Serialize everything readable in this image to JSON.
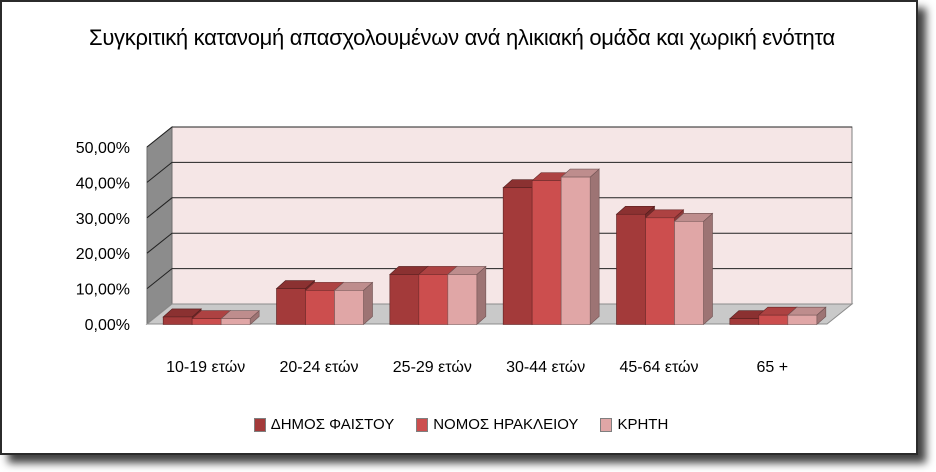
{
  "chart_data": {
    "type": "bar",
    "title": "Συγκριτική κατανομή απασχολουμένων ανά ηλικιακή ομάδα και χωρική ενότητα",
    "categories": [
      "10-19 ετών",
      "20-24 ετών",
      "25-29 ετών",
      "30-44 ετών",
      "45-64 ετών",
      "65 +"
    ],
    "series": [
      {
        "name": "ΔΗΜΟΣ ΦΑΙΣΤΟΥ",
        "values": [
          2.0,
          10.0,
          14.0,
          38.5,
          31.0,
          1.5
        ],
        "color": "#a33a3a"
      },
      {
        "name": "ΝΟΜΟΣ ΗΡΑΚΛΕΙΟΥ",
        "values": [
          1.5,
          9.5,
          14.0,
          40.5,
          30.0,
          2.5
        ],
        "color": "#cc4e4e"
      },
      {
        "name": "ΚΡΗΤΗ",
        "values": [
          1.5,
          9.5,
          14.0,
          41.5,
          29.0,
          2.5
        ],
        "color": "#e0a6a6"
      }
    ],
    "ylim": [
      0,
      50
    ],
    "yticks": [
      "0,00%",
      "10,00%",
      "20,00%",
      "30,00%",
      "40,00%",
      "50,00%"
    ],
    "grid": true,
    "legend_position": "bottom",
    "colors": {
      "wall": "#f5e6e6",
      "floor": "#c9c9c9",
      "side_wall": "#8c8c8c"
    }
  }
}
